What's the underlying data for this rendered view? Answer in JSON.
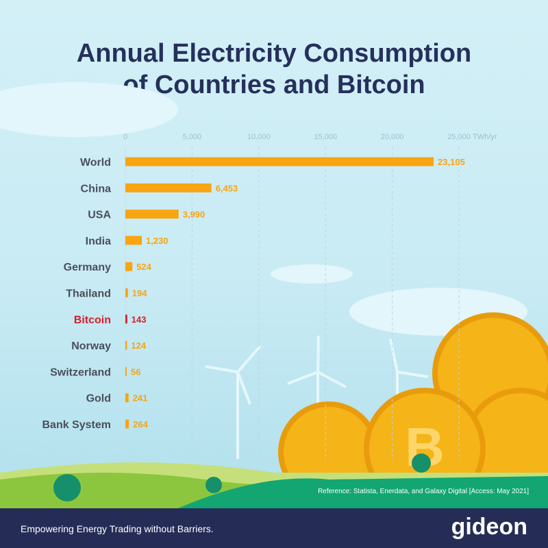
{
  "title_line1": "Annual Electricity Consumption",
  "title_line2": "of Countries and Bitcoin",
  "chart_data": {
    "type": "bar",
    "orientation": "horizontal",
    "categories": [
      "World",
      "China",
      "USA",
      "India",
      "Germany",
      "Thailand",
      "Bitcoin",
      "Norway",
      "Switzerland",
      "Gold",
      "Bank System"
    ],
    "values": [
      23105,
      6453,
      3990,
      1230,
      524,
      194,
      143,
      124,
      56,
      241,
      264
    ],
    "value_labels": [
      "23,105",
      "6,453",
      "3,990",
      "1,230",
      "524",
      "194",
      "143",
      "124",
      "56",
      "241",
      "264"
    ],
    "highlight": "Bitcoin",
    "xlim": [
      0,
      25000
    ],
    "xticks": [
      0,
      5000,
      10000,
      15000,
      20000,
      25000
    ],
    "xtick_labels": [
      "0",
      "5,000",
      "10,000",
      "15,000",
      "20,000",
      "25,000"
    ],
    "unit": "TWh/yr",
    "grid": true,
    "colors": {
      "bar": "#f9a411",
      "highlight": "#d71f2c",
      "label": "#4a4f5c"
    }
  },
  "reference": "Reference: Statista, Enerdata, and Galaxy Digital [Access: May 2021]",
  "footer": {
    "tagline": "Empowering Energy Trading without Barriers.",
    "logo": "gideon"
  }
}
